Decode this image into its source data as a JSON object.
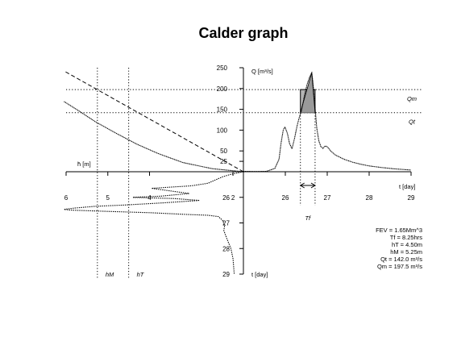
{
  "title": "Calder graph",
  "chart_data": {
    "type": "line",
    "title": "Calder graph",
    "discharge_panel": {
      "ylabel": "Q  [m³/s]",
      "xlabel": "t  [day]",
      "x_ticks": [
        26,
        27,
        28,
        29
      ],
      "y_ticks": [
        25,
        50,
        100,
        150,
        200,
        250
      ],
      "xlim": [
        25,
        29
      ],
      "ylim": [
        0,
        250
      ],
      "series": [
        {
          "values": [
            [
              25.0,
              1
            ],
            [
              25.3,
              0.6
            ],
            [
              25.55,
              1
            ],
            [
              25.75,
              8
            ],
            [
              25.85,
              30
            ],
            [
              25.9,
              70
            ],
            [
              25.95,
              100
            ],
            [
              25.99,
              108
            ],
            [
              26.05,
              92
            ],
            [
              26.1,
              68
            ],
            [
              26.16,
              55
            ],
            [
              26.22,
              80
            ],
            [
              26.28,
              110
            ],
            [
              26.33,
              130
            ],
            [
              26.38,
              145
            ],
            [
              26.45,
              180
            ],
            [
              26.52,
              210
            ],
            [
              26.58,
              228
            ],
            [
              26.63,
              238
            ],
            [
              26.66,
              215
            ],
            [
              26.7,
              165
            ],
            [
              26.75,
              105
            ],
            [
              26.8,
              74
            ],
            [
              26.85,
              60
            ],
            [
              26.9,
              56
            ],
            [
              26.95,
              62
            ],
            [
              27.0,
              60
            ],
            [
              27.1,
              48
            ],
            [
              27.2,
              40
            ],
            [
              27.4,
              30
            ],
            [
              27.6,
              23
            ],
            [
              27.8,
              18
            ],
            [
              28.0,
              14
            ],
            [
              28.3,
              10
            ],
            [
              28.6,
              7
            ],
            [
              29.0,
              4
            ]
          ]
        }
      ],
      "threshold_lines": [
        {
          "label": "Qm",
          "value": 197.5
        },
        {
          "label": "Qt",
          "value": 142.0
        }
      ],
      "peak_window": {
        "label": "Tf",
        "t_start": 26.36,
        "t_end": 26.71
      }
    },
    "depth_panel": {
      "xlabel": "h̄  [m]",
      "ylabel": "t  [day]",
      "x_ticks": [
        6,
        5,
        4,
        2
      ],
      "y_ticks": [
        26,
        27,
        28,
        29
      ],
      "xlim": [
        6,
        1.75
      ],
      "ylim": [
        25,
        29
      ],
      "vertical_lines": [
        {
          "label": "hM",
          "value": 5.25
        },
        {
          "label": "hT",
          "value": 4.5
        }
      ],
      "series": [
        {
          "values": [
            [
              1.75,
              25.0
            ],
            [
              1.9,
              25.05
            ],
            [
              2.05,
              25.1
            ],
            [
              2.25,
              25.2
            ],
            [
              2.6,
              25.45
            ],
            [
              3.0,
              25.55
            ],
            [
              3.5,
              25.6
            ],
            [
              3.95,
              25.65
            ],
            [
              3.5,
              25.75
            ],
            [
              3.05,
              25.85
            ],
            [
              3.7,
              25.95
            ],
            [
              4.4,
              26.0
            ],
            [
              3.4,
              26.05
            ],
            [
              2.8,
              26.12
            ],
            [
              3.7,
              26.22
            ],
            [
              4.6,
              26.3
            ],
            [
              5.3,
              26.35
            ],
            [
              5.8,
              26.42
            ],
            [
              6.05,
              26.47
            ],
            [
              5.9,
              26.5
            ],
            [
              5.0,
              26.55
            ],
            [
              4.0,
              26.6
            ],
            [
              3.1,
              26.67
            ],
            [
              2.6,
              26.7
            ],
            [
              2.35,
              26.75
            ],
            [
              2.25,
              26.9
            ],
            [
              2.2,
              27.1
            ],
            [
              2.22,
              27.3
            ],
            [
              2.15,
              27.6
            ],
            [
              2.05,
              28.0
            ],
            [
              2.0,
              28.4
            ],
            [
              1.98,
              28.8
            ],
            [
              1.97,
              29.0
            ]
          ]
        }
      ]
    },
    "volume_panel": {
      "values": [
        [
          1.75,
          0
        ],
        [
          2.5,
          0.05
        ],
        [
          3.2,
          0.15
        ],
        [
          3.8,
          0.3
        ],
        [
          4.3,
          0.45
        ],
        [
          4.8,
          0.63
        ],
        [
          5.3,
          0.82
        ],
        [
          5.75,
          1.02
        ],
        [
          6.05,
          1.15
        ]
      ],
      "tangent_line": [
        [
          1.75,
          0
        ],
        [
          6.05,
          1.65
        ]
      ]
    },
    "annotations": [
      "FEV = 1.65Mm^3",
      "Tf = 8.25hrs",
      "hT = 4.50m",
      "hM = 5.25m",
      "Qt = 142.0  m³/s",
      "Qm = 197.5 m³/s"
    ]
  }
}
